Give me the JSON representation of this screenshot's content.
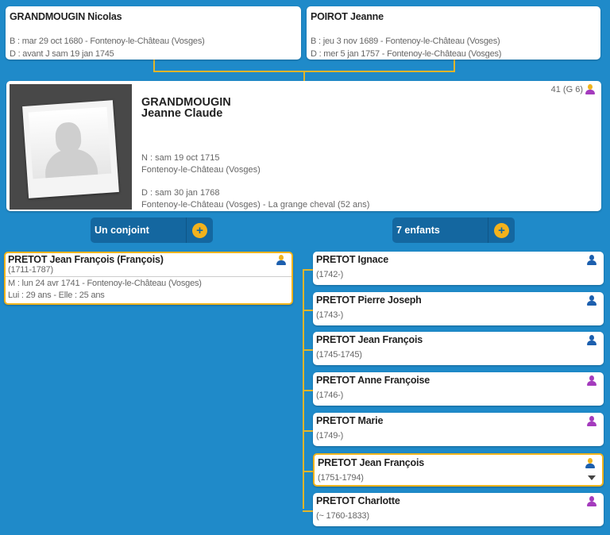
{
  "parents": [
    {
      "name": "GRANDMOUGIN Nicolas",
      "birth": "B : mar 29 oct 1680 - Fontenoy-le-Château (Vosges)",
      "death": "D : avant J sam 19 jan 1745"
    },
    {
      "name": "POIROT Jeanne",
      "birth": "B : jeu 3 nov 1689 - Fontenoy-le-Château (Vosges)",
      "death": "D : mer 5 jan 1757 - Fontenoy-le-Château (Vosges)"
    }
  ],
  "main": {
    "surname": "GRANDMOUGIN",
    "given": "Jeanne Claude",
    "sosa": "41 (G 6)",
    "birth_date": "N : sam 19 oct 1715",
    "birth_place": "Fontenoy-le-Château (Vosges)",
    "death_date": "D : sam 30 jan 1768",
    "death_place": "Fontenoy-le-Château (Vosges) - La grange cheval (52 ans)",
    "gender_icon": "person-female-icon"
  },
  "spouse_button": "Un conjoint",
  "children_button": "7 enfants",
  "spouse": {
    "name": "PRETOT Jean François (François)",
    "dates": "(1711-1787)",
    "marriage": "M : lun 24 avr 1741 - Fontenoy-le-Château (Vosges)",
    "ages": "Lui : 29 ans - Elle : 25 ans"
  },
  "children": [
    {
      "name": "PRETOT Ignace",
      "dates": "(1742-)",
      "gender": "male"
    },
    {
      "name": "PRETOT Pierre Joseph",
      "dates": "(1743-)",
      "gender": "male"
    },
    {
      "name": "PRETOT Jean François",
      "dates": "(1745-1745)",
      "gender": "male"
    },
    {
      "name": "PRETOT Anne Françoise",
      "dates": "(1746-)",
      "gender": "female"
    },
    {
      "name": "PRETOT Marie",
      "dates": "(1749-)",
      "gender": "female"
    },
    {
      "name": "PRETOT Jean François",
      "dates": "(1751-1794)",
      "gender": "male",
      "selected": true
    },
    {
      "name": "PRETOT Charlotte",
      "dates": "(~ 1760-1833)",
      "gender": "female"
    }
  ],
  "colors": {
    "background": "#1f8ac9",
    "accent": "#f0b41c",
    "male": "#1c5fae",
    "female": "#a43bbd",
    "button": "#1467a0"
  }
}
